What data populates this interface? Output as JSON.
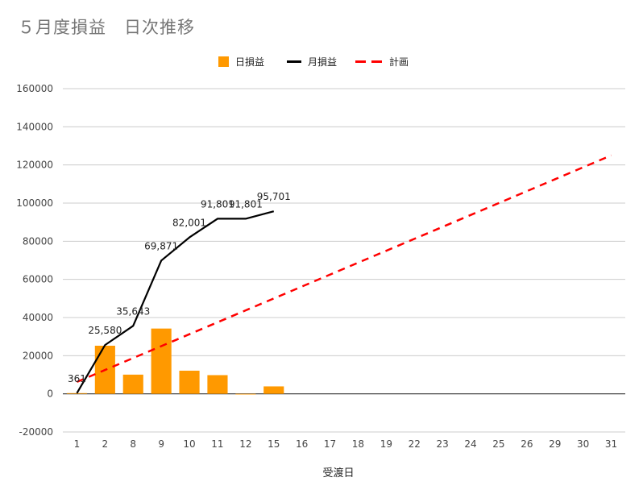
{
  "chart_data": {
    "type": "bar",
    "title": "５月度損益　日次推移",
    "xlabel": "受渡日",
    "ylabel": "",
    "categories": [
      "1",
      "2",
      "8",
      "9",
      "10",
      "11",
      "12",
      "15",
      "16",
      "17",
      "18",
      "19",
      "22",
      "23",
      "24",
      "25",
      "26",
      "29",
      "30",
      "31"
    ],
    "ylim": [
      -20000,
      160000
    ],
    "yticks": [
      -20000,
      0,
      20000,
      40000,
      60000,
      80000,
      100000,
      120000,
      140000,
      160000
    ],
    "grid": true,
    "legend_position": "top",
    "series": [
      {
        "name": "日損益",
        "type": "bar",
        "color": "#ff9900",
        "values": [
          361,
          25219,
          10063,
          34228,
          12130,
          9800,
          0,
          3900,
          null,
          null,
          null,
          null,
          null,
          null,
          null,
          null,
          null,
          null,
          null,
          null
        ]
      },
      {
        "name": "月損益",
        "type": "line",
        "color": "#000000",
        "values": [
          361,
          25580,
          35643,
          69871,
          82001,
          91801,
          91801,
          95701,
          null,
          null,
          null,
          null,
          null,
          null,
          null,
          null,
          null,
          null,
          null,
          null
        ],
        "labels": [
          "361",
          "25,580",
          "35,643",
          "69,871",
          "82,001",
          "91,801",
          "91,801",
          "95,701",
          "",
          "",
          "",
          "",
          "",
          "",
          "",
          "",
          "",
          "",
          "",
          ""
        ]
      },
      {
        "name": "計画",
        "type": "line",
        "dash": true,
        "color": "#ff0000",
        "values": [
          6250,
          12500,
          18750,
          25000,
          31250,
          37500,
          43750,
          50000,
          56250,
          62500,
          68750,
          75000,
          81250,
          87500,
          93750,
          100000,
          106250,
          112500,
          118750,
          125000
        ]
      }
    ]
  }
}
